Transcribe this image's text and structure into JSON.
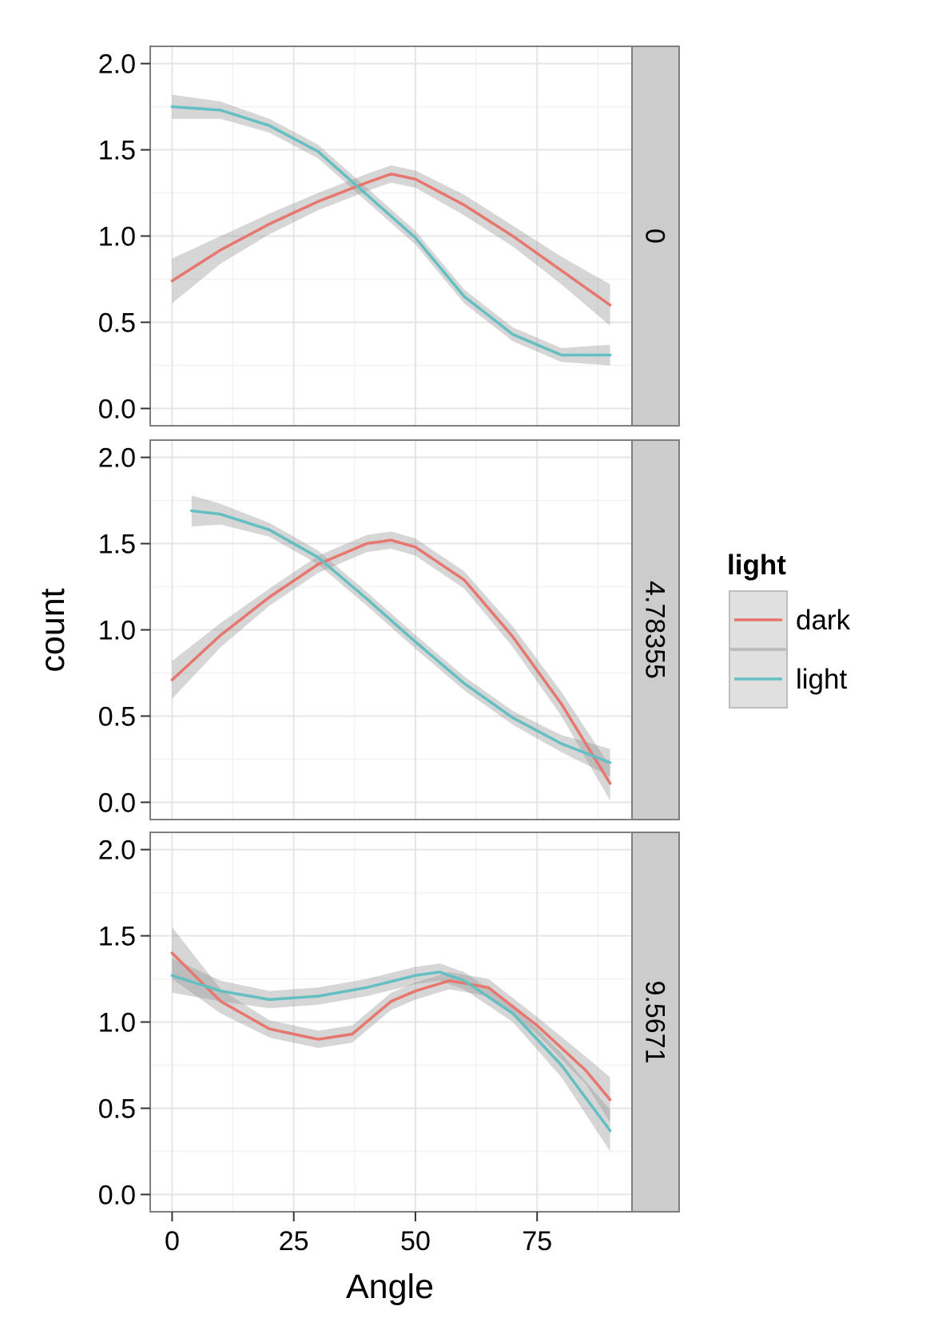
{
  "colors": {
    "panel_background": "#ffffff",
    "grid_major": "#e5e5e5",
    "grid_minor": "#f2f2f2",
    "panel_border": "#7f7f7f",
    "strip_background": "#cccccc",
    "ribbon": "#999999",
    "legend_key_background": "#e0e0e0"
  },
  "chart_data": {
    "type": "line",
    "subtype": "smoothed lines with confidence ribbons, faceted by row",
    "xlabel": "Angle",
    "ylabel": "count",
    "xlim": [
      -4.5,
      94.5
    ],
    "ylim": [
      -0.1,
      2.1
    ],
    "x_ticks": [
      0,
      25,
      50,
      75
    ],
    "x_tick_labels": [
      "0",
      "25",
      "50",
      "75"
    ],
    "y_ticks": [
      0,
      0.5,
      1,
      1.5,
      2
    ],
    "y_tick_labels": [
      "0.0",
      "0.5",
      "1.0",
      "1.5",
      "2.0"
    ],
    "grid": true,
    "legend": {
      "title": "light",
      "position": "right",
      "entries": [
        {
          "label": "dark",
          "color": "#E7776E"
        },
        {
          "label": "light",
          "color": "#64BFC2"
        }
      ]
    },
    "facets": [
      {
        "strip_label": "0",
        "series": [
          {
            "name": "dark",
            "color": "#E7776E",
            "x": [
              0,
              10,
              20,
              30,
              40,
              45,
              50,
              60,
              70,
              80,
              90
            ],
            "y": [
              0.74,
              0.92,
              1.07,
              1.2,
              1.31,
              1.36,
              1.33,
              1.18,
              1.0,
              0.8,
              0.6
            ],
            "se": [
              0.13,
              0.08,
              0.06,
              0.05,
              0.05,
              0.05,
              0.05,
              0.06,
              0.06,
              0.08,
              0.12
            ]
          },
          {
            "name": "light",
            "color": "#64BFC2",
            "x": [
              0,
              10,
              20,
              30,
              40,
              50,
              60,
              70,
              80,
              90
            ],
            "y": [
              1.75,
              1.73,
              1.64,
              1.49,
              1.24,
              0.99,
              0.65,
              0.43,
              0.31,
              0.31
            ],
            "se": [
              0.07,
              0.05,
              0.04,
              0.04,
              0.04,
              0.04,
              0.04,
              0.04,
              0.04,
              0.06
            ]
          }
        ]
      },
      {
        "strip_label": "4.78355",
        "series": [
          {
            "name": "dark",
            "color": "#E7776E",
            "x": [
              0,
              10,
              20,
              30,
              40,
              45,
              50,
              60,
              70,
              80,
              90
            ],
            "y": [
              0.71,
              0.97,
              1.19,
              1.38,
              1.5,
              1.52,
              1.48,
              1.29,
              0.96,
              0.57,
              0.11
            ],
            "se": [
              0.11,
              0.07,
              0.05,
              0.05,
              0.05,
              0.05,
              0.05,
              0.05,
              0.06,
              0.07,
              0.1
            ]
          },
          {
            "name": "light",
            "color": "#64BFC2",
            "x": [
              4,
              10,
              20,
              30,
              40,
              50,
              60,
              70,
              80,
              90
            ],
            "y": [
              1.69,
              1.67,
              1.58,
              1.42,
              1.18,
              0.93,
              0.69,
              0.49,
              0.34,
              0.23
            ],
            "se": [
              0.09,
              0.06,
              0.04,
              0.04,
              0.04,
              0.04,
              0.04,
              0.04,
              0.05,
              0.08
            ]
          }
        ]
      },
      {
        "strip_label": "9.5671",
        "series": [
          {
            "name": "dark",
            "color": "#E7776E",
            "x": [
              0,
              10,
              20,
              30,
              37,
              45,
              50,
              57,
              65,
              75,
              85,
              90
            ],
            "y": [
              1.4,
              1.12,
              0.96,
              0.9,
              0.93,
              1.12,
              1.18,
              1.24,
              1.2,
              0.98,
              0.72,
              0.55
            ],
            "se": [
              0.15,
              0.07,
              0.05,
              0.05,
              0.05,
              0.05,
              0.05,
              0.05,
              0.05,
              0.05,
              0.08,
              0.13
            ]
          },
          {
            "name": "light",
            "color": "#64BFC2",
            "x": [
              0,
              10,
              20,
              30,
              40,
              50,
              55,
              60,
              70,
              80,
              90
            ],
            "y": [
              1.27,
              1.18,
              1.13,
              1.15,
              1.2,
              1.27,
              1.29,
              1.24,
              1.05,
              0.75,
              0.37
            ],
            "se": [
              0.1,
              0.06,
              0.05,
              0.05,
              0.05,
              0.05,
              0.05,
              0.05,
              0.05,
              0.07,
              0.12
            ]
          }
        ]
      }
    ]
  }
}
